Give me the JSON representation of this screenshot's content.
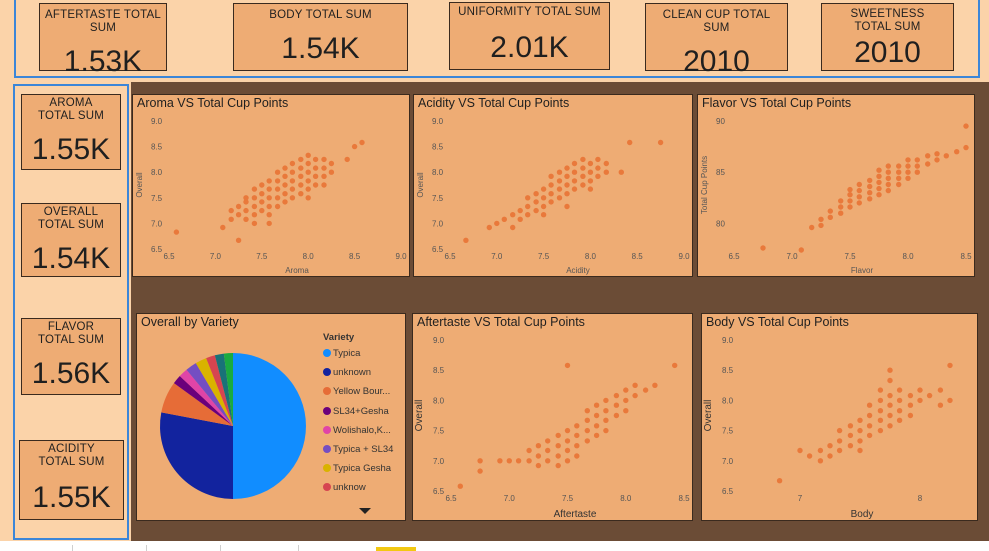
{
  "colors": {
    "point": "#e9793b",
    "panel": "#eeac74",
    "background": "#6b4c36",
    "header": "#fbd3a9",
    "selection": "#3b86d8"
  },
  "top_cards": [
    {
      "label": "AFTERTASTE TOTAL SUM",
      "value": "1.53K"
    },
    {
      "label": "BODY TOTAL SUM",
      "value": "1.54K"
    },
    {
      "label": "UNIFORMITY TOTAL SUM",
      "value": "2.01K"
    },
    {
      "label": "CLEAN CUP TOTAL SUM",
      "value": "2010"
    },
    {
      "label": "SWEETNESS TOTAL SUM",
      "value": "2010"
    }
  ],
  "side_cards": [
    {
      "label": "AROMA TOTAL SUM",
      "value": "1.55K"
    },
    {
      "label": "OVERALL TOTAL SUM",
      "value": "1.54K"
    },
    {
      "label": "FLAVOR TOTAL SUM",
      "value": "1.56K"
    },
    {
      "label": "ACIDITY TOTAL SUM",
      "value": "1.55K"
    }
  ],
  "chart_data": [
    {
      "id": "aroma",
      "type": "scatter",
      "title": "Aroma VS Total Cup Points",
      "xlabel": "Aroma",
      "ylabel": "Overall",
      "xlim": [
        6.5,
        9.0
      ],
      "ylim": [
        6.5,
        9.0
      ],
      "xticks": [
        "6.5",
        "7.0",
        "7.5",
        "8.0",
        "8.5",
        "9.0"
      ],
      "yticks": [
        "6.5",
        "7.0",
        "7.5",
        "8.0",
        "8.5",
        "9.0"
      ],
      "points": [
        [
          6.58,
          6.83
        ],
        [
          7.08,
          6.92
        ],
        [
          7.17,
          7.08
        ],
        [
          7.25,
          6.67
        ],
        [
          7.17,
          7.25
        ],
        [
          7.25,
          7.17
        ],
        [
          7.25,
          7.33
        ],
        [
          7.33,
          7.08
        ],
        [
          7.33,
          7.25
        ],
        [
          7.33,
          7.42
        ],
        [
          7.33,
          7.5
        ],
        [
          7.42,
          7.17
        ],
        [
          7.42,
          7.33
        ],
        [
          7.42,
          7.5
        ],
        [
          7.42,
          7.67
        ],
        [
          7.5,
          7.25
        ],
        [
          7.5,
          7.42
        ],
        [
          7.5,
          7.58
        ],
        [
          7.5,
          7.75
        ],
        [
          7.58,
          7.17
        ],
        [
          7.58,
          7.33
        ],
        [
          7.58,
          7.5
        ],
        [
          7.58,
          7.67
        ],
        [
          7.58,
          7.83
        ],
        [
          7.67,
          7.33
        ],
        [
          7.67,
          7.5
        ],
        [
          7.67,
          7.67
        ],
        [
          7.67,
          7.83
        ],
        [
          7.67,
          8.0
        ],
        [
          7.75,
          7.42
        ],
        [
          7.75,
          7.58
        ],
        [
          7.75,
          7.75
        ],
        [
          7.75,
          7.92
        ],
        [
          7.75,
          8.08
        ],
        [
          7.83,
          7.5
        ],
        [
          7.83,
          7.67
        ],
        [
          7.83,
          7.83
        ],
        [
          7.83,
          8.0
        ],
        [
          7.83,
          8.17
        ],
        [
          7.92,
          7.58
        ],
        [
          7.92,
          7.75
        ],
        [
          7.92,
          7.92
        ],
        [
          7.92,
          8.08
        ],
        [
          7.92,
          8.25
        ],
        [
          8.0,
          7.67
        ],
        [
          8.0,
          7.83
        ],
        [
          8.0,
          8.0
        ],
        [
          8.0,
          8.17
        ],
        [
          8.0,
          8.33
        ],
        [
          8.08,
          7.75
        ],
        [
          8.08,
          7.92
        ],
        [
          8.08,
          8.08
        ],
        [
          8.08,
          8.25
        ],
        [
          8.17,
          7.92
        ],
        [
          8.17,
          8.08
        ],
        [
          8.17,
          8.25
        ],
        [
          8.25,
          8.0
        ],
        [
          8.25,
          8.17
        ],
        [
          8.42,
          8.25
        ],
        [
          8.5,
          8.5
        ],
        [
          8.58,
          8.58
        ],
        [
          8.0,
          7.5
        ],
        [
          7.58,
          7.0
        ],
        [
          7.42,
          7.0
        ],
        [
          8.17,
          7.75
        ]
      ]
    },
    {
      "id": "acidity",
      "type": "scatter",
      "title": "Acidity VS Total Cup Points",
      "xlabel": "Acidity",
      "ylabel": "Overall",
      "xlim": [
        6.5,
        9.0
      ],
      "ylim": [
        6.5,
        9.0
      ],
      "xticks": [
        "6.5",
        "7.0",
        "7.5",
        "8.0",
        "8.5",
        "9.0"
      ],
      "yticks": [
        "6.5",
        "7.0",
        "7.5",
        "8.0",
        "8.5",
        "9.0"
      ],
      "points": [
        [
          6.67,
          6.67
        ],
        [
          6.92,
          6.92
        ],
        [
          7.0,
          7.0
        ],
        [
          7.08,
          7.08
        ],
        [
          7.17,
          7.17
        ],
        [
          7.17,
          6.92
        ],
        [
          7.25,
          7.25
        ],
        [
          7.25,
          7.08
        ],
        [
          7.33,
          7.33
        ],
        [
          7.33,
          7.17
        ],
        [
          7.33,
          7.5
        ],
        [
          7.42,
          7.25
        ],
        [
          7.42,
          7.42
        ],
        [
          7.42,
          7.58
        ],
        [
          7.5,
          7.33
        ],
        [
          7.5,
          7.5
        ],
        [
          7.5,
          7.67
        ],
        [
          7.5,
          7.17
        ],
        [
          7.58,
          7.42
        ],
        [
          7.58,
          7.58
        ],
        [
          7.58,
          7.75
        ],
        [
          7.58,
          7.92
        ],
        [
          7.67,
          7.5
        ],
        [
          7.67,
          7.67
        ],
        [
          7.67,
          7.83
        ],
        [
          7.67,
          8.0
        ],
        [
          7.75,
          7.58
        ],
        [
          7.75,
          7.75
        ],
        [
          7.75,
          7.92
        ],
        [
          7.75,
          8.08
        ],
        [
          7.75,
          7.33
        ],
        [
          7.83,
          7.67
        ],
        [
          7.83,
          7.83
        ],
        [
          7.83,
          8.0
        ],
        [
          7.83,
          8.17
        ],
        [
          7.92,
          7.75
        ],
        [
          7.92,
          7.92
        ],
        [
          7.92,
          8.08
        ],
        [
          7.92,
          8.25
        ],
        [
          8.0,
          7.83
        ],
        [
          8.0,
          8.0
        ],
        [
          8.0,
          8.17
        ],
        [
          8.0,
          7.67
        ],
        [
          8.08,
          7.92
        ],
        [
          8.08,
          8.08
        ],
        [
          8.08,
          8.25
        ],
        [
          8.17,
          8.0
        ],
        [
          8.17,
          8.17
        ],
        [
          8.33,
          8.0
        ],
        [
          8.42,
          8.58
        ],
        [
          8.75,
          8.58
        ]
      ]
    },
    {
      "id": "flavor",
      "type": "scatter",
      "title": "Flavor VS Total Cup Points",
      "xlabel": "Flavor",
      "ylabel": "Total Cup Points",
      "xlim": [
        6.5,
        8.5
      ],
      "ylim": [
        77.5,
        90
      ],
      "xticks": [
        "6.5",
        "7.0",
        "7.5",
        "8.0",
        "8.5"
      ],
      "yticks": [
        "80",
        "85",
        "90"
      ],
      "yticks_values": [
        80,
        85,
        90
      ],
      "points": [
        [
          6.75,
          77.6
        ],
        [
          7.08,
          77.4
        ],
        [
          7.17,
          79.6
        ],
        [
          7.25,
          79.8
        ],
        [
          7.25,
          80.4
        ],
        [
          7.33,
          80.6
        ],
        [
          7.33,
          81.2
        ],
        [
          7.42,
          81.0
        ],
        [
          7.42,
          81.6
        ],
        [
          7.42,
          82.2
        ],
        [
          7.5,
          81.6
        ],
        [
          7.5,
          82.2
        ],
        [
          7.5,
          82.8
        ],
        [
          7.5,
          83.3
        ],
        [
          7.58,
          82.0
        ],
        [
          7.58,
          82.6
        ],
        [
          7.58,
          83.2
        ],
        [
          7.58,
          83.8
        ],
        [
          7.67,
          82.4
        ],
        [
          7.67,
          83.0
        ],
        [
          7.67,
          83.6
        ],
        [
          7.67,
          84.2
        ],
        [
          7.75,
          82.8
        ],
        [
          7.75,
          83.4
        ],
        [
          7.75,
          84.0
        ],
        [
          7.75,
          84.6
        ],
        [
          7.75,
          85.2
        ],
        [
          7.83,
          83.2
        ],
        [
          7.83,
          83.8
        ],
        [
          7.83,
          84.4
        ],
        [
          7.83,
          85.0
        ],
        [
          7.83,
          85.6
        ],
        [
          7.92,
          83.8
        ],
        [
          7.92,
          84.4
        ],
        [
          7.92,
          85.0
        ],
        [
          7.92,
          85.6
        ],
        [
          8.0,
          84.4
        ],
        [
          8.0,
          85.0
        ],
        [
          8.0,
          85.6
        ],
        [
          8.0,
          86.2
        ],
        [
          8.08,
          85.0
        ],
        [
          8.08,
          85.6
        ],
        [
          8.08,
          86.2
        ],
        [
          8.17,
          85.8
        ],
        [
          8.17,
          86.6
        ],
        [
          8.25,
          86.2
        ],
        [
          8.25,
          86.8
        ],
        [
          8.33,
          86.6
        ],
        [
          8.42,
          87.0
        ],
        [
          8.5,
          87.4
        ],
        [
          8.5,
          89.5
        ]
      ]
    },
    {
      "id": "variety",
      "type": "pie",
      "title": "Overall by Variety",
      "legend_title": "Variety",
      "legend": [
        {
          "name": "Typica",
          "color": "#118dff"
        },
        {
          "name": "unknown",
          "color": "#12239e"
        },
        {
          "name": "Yellow Bour...",
          "color": "#e66c37"
        },
        {
          "name": "SL34+Gesha",
          "color": "#6b007b"
        },
        {
          "name": "Wolishalo,K...",
          "color": "#e044a7"
        },
        {
          "name": "Typica + SL34",
          "color": "#744ec2"
        },
        {
          "name": "Typica Gesha",
          "color": "#d9b300"
        },
        {
          "name": "unknow",
          "color": "#d64550"
        }
      ],
      "slices": [
        {
          "color": "#118dff",
          "value": 50.0
        },
        {
          "color": "#12239e",
          "value": 28.0
        },
        {
          "color": "#e66c37",
          "value": 7.0
        },
        {
          "color": "#6b007b",
          "value": 2.0
        },
        {
          "color": "#e044a7",
          "value": 2.0
        },
        {
          "color": "#744ec2",
          "value": 2.5
        },
        {
          "color": "#d9b300",
          "value": 2.5
        },
        {
          "color": "#d64550",
          "value": 2.0
        },
        {
          "color": "#197278",
          "value": 2.0
        },
        {
          "color": "#1aab40",
          "value": 2.0
        }
      ]
    },
    {
      "id": "aftertaste",
      "type": "scatter",
      "title": "Aftertaste VS Total Cup Points",
      "xlabel": "Aftertaste",
      "ylabel": "Overall",
      "xlim": [
        6.5,
        8.5
      ],
      "ylim": [
        6.5,
        9.0
      ],
      "xticks": [
        "6.5",
        "7.0",
        "7.5",
        "8.0",
        "8.5"
      ],
      "yticks": [
        "6.5",
        "7.0",
        "7.5",
        "8.0",
        "8.5",
        "9.0"
      ],
      "points": [
        [
          6.58,
          6.58
        ],
        [
          6.75,
          6.83
        ],
        [
          6.75,
          7.0
        ],
        [
          6.92,
          7.0
        ],
        [
          7.0,
          7.0
        ],
        [
          7.08,
          7.0
        ],
        [
          7.17,
          7.17
        ],
        [
          7.17,
          7.0
        ],
        [
          7.25,
          7.25
        ],
        [
          7.25,
          7.08
        ],
        [
          7.25,
          6.92
        ],
        [
          7.33,
          7.33
        ],
        [
          7.33,
          7.17
        ],
        [
          7.33,
          7.0
        ],
        [
          7.42,
          7.42
        ],
        [
          7.42,
          7.25
        ],
        [
          7.42,
          7.08
        ],
        [
          7.42,
          6.92
        ],
        [
          7.5,
          7.5
        ],
        [
          7.5,
          7.33
        ],
        [
          7.5,
          7.17
        ],
        [
          7.5,
          7.0
        ],
        [
          7.5,
          8.58
        ],
        [
          7.58,
          7.58
        ],
        [
          7.58,
          7.42
        ],
        [
          7.58,
          7.25
        ],
        [
          7.58,
          7.08
        ],
        [
          7.67,
          7.67
        ],
        [
          7.67,
          7.5
        ],
        [
          7.67,
          7.33
        ],
        [
          7.67,
          7.83
        ],
        [
          7.75,
          7.75
        ],
        [
          7.75,
          7.58
        ],
        [
          7.75,
          7.42
        ],
        [
          7.75,
          7.92
        ],
        [
          7.83,
          7.83
        ],
        [
          7.83,
          7.67
        ],
        [
          7.83,
          7.5
        ],
        [
          7.83,
          8.0
        ],
        [
          7.92,
          7.92
        ],
        [
          7.92,
          7.75
        ],
        [
          7.92,
          8.08
        ],
        [
          8.0,
          8.0
        ],
        [
          8.0,
          7.83
        ],
        [
          8.0,
          8.17
        ],
        [
          8.08,
          8.08
        ],
        [
          8.08,
          8.25
        ],
        [
          8.17,
          8.17
        ],
        [
          8.25,
          8.25
        ],
        [
          8.42,
          8.58
        ]
      ]
    },
    {
      "id": "body",
      "type": "scatter",
      "title": "Body VS Total Cup Points",
      "xlabel": "Body",
      "ylabel": "Overall",
      "xlim": [
        6.5,
        8.4
      ],
      "ylim": [
        6.5,
        9.0
      ],
      "xticks": [
        "7",
        "8"
      ],
      "xticks_values": [
        7,
        8
      ],
      "yticks": [
        "6.5",
        "7.0",
        "7.5",
        "8.0",
        "8.5",
        "9.0"
      ],
      "points": [
        [
          6.83,
          6.67
        ],
        [
          7.0,
          7.17
        ],
        [
          7.08,
          7.08
        ],
        [
          7.17,
          7.17
        ],
        [
          7.17,
          7.0
        ],
        [
          7.25,
          7.25
        ],
        [
          7.25,
          7.08
        ],
        [
          7.33,
          7.33
        ],
        [
          7.33,
          7.17
        ],
        [
          7.33,
          7.5
        ],
        [
          7.42,
          7.42
        ],
        [
          7.42,
          7.25
        ],
        [
          7.42,
          7.58
        ],
        [
          7.5,
          7.5
        ],
        [
          7.5,
          7.33
        ],
        [
          7.5,
          7.67
        ],
        [
          7.5,
          7.17
        ],
        [
          7.58,
          7.58
        ],
        [
          7.58,
          7.42
        ],
        [
          7.58,
          7.75
        ],
        [
          7.58,
          7.92
        ],
        [
          7.67,
          7.67
        ],
        [
          7.67,
          7.5
        ],
        [
          7.67,
          7.83
        ],
        [
          7.67,
          8.0
        ],
        [
          7.67,
          8.17
        ],
        [
          7.75,
          7.75
        ],
        [
          7.75,
          7.58
        ],
        [
          7.75,
          7.92
        ],
        [
          7.75,
          8.08
        ],
        [
          7.75,
          8.33
        ],
        [
          7.75,
          8.5
        ],
        [
          7.83,
          7.83
        ],
        [
          7.83,
          7.67
        ],
        [
          7.83,
          8.0
        ],
        [
          7.83,
          8.17
        ],
        [
          7.92,
          7.92
        ],
        [
          7.92,
          8.08
        ],
        [
          7.92,
          7.75
        ],
        [
          8.0,
          8.0
        ],
        [
          8.0,
          8.17
        ],
        [
          8.08,
          8.08
        ],
        [
          8.17,
          7.92
        ],
        [
          8.17,
          8.17
        ],
        [
          8.25,
          8.58
        ],
        [
          8.25,
          8.0
        ]
      ]
    }
  ]
}
